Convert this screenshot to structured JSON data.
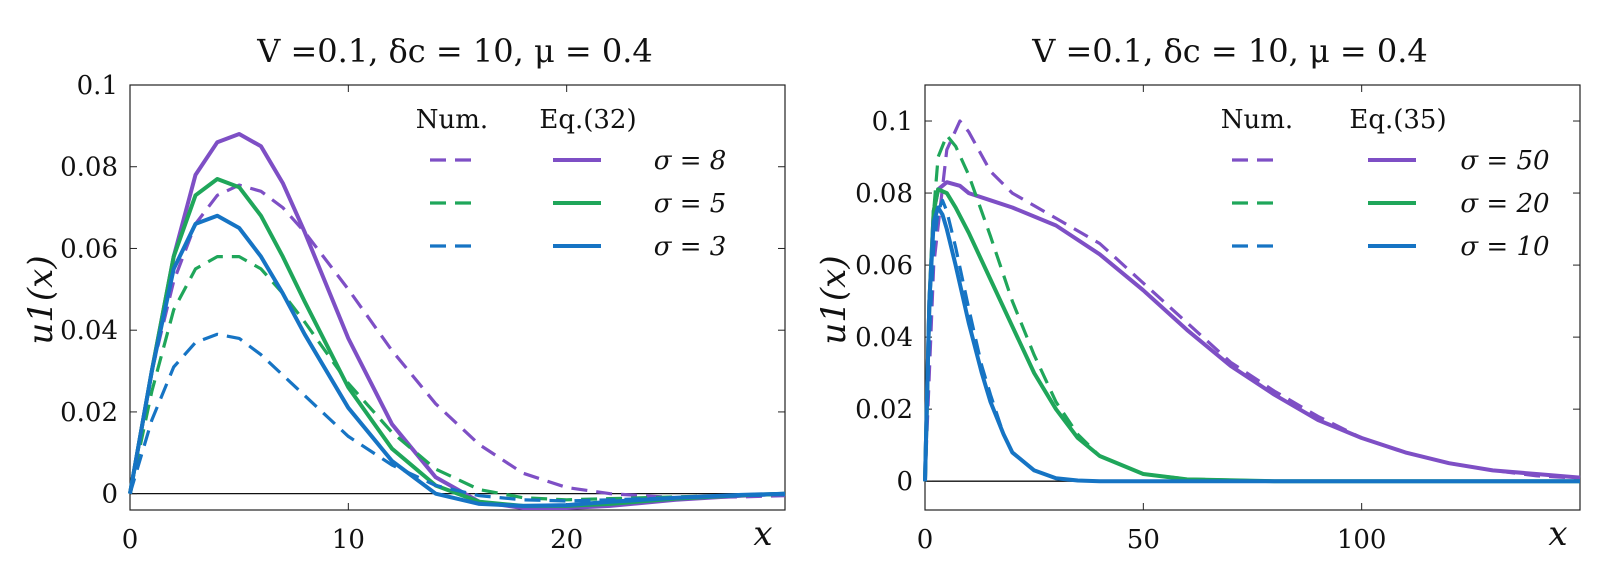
{
  "chart_data": [
    {
      "type": "line",
      "title": "V =0.1, δc = 10, μ = 0.4",
      "xlabel": "x",
      "ylabel": "u1(x)",
      "xlim": [
        0,
        30
      ],
      "ylim": [
        -0.004,
        0.1
      ],
      "xticks": [
        0,
        10,
        20
      ],
      "xtick_labels": [
        "0",
        "10",
        "20"
      ],
      "yticks": [
        0,
        0.02,
        0.04,
        0.06,
        0.08,
        0.1
      ],
      "ytick_labels": [
        "0",
        "0.02",
        "0.04",
        "0.06",
        "0.08",
        "0.1"
      ],
      "legend_headers": [
        "Num.",
        "Eq.(32)"
      ],
      "legend_position": "top-right",
      "series": [
        {
          "name": "σ = 8",
          "color": "#7e4fc5",
          "style": "dashed",
          "x": [
            0,
            1,
            2,
            3,
            4,
            5,
            6,
            7,
            8,
            10,
            12,
            14,
            16,
            18,
            20,
            22,
            25,
            28,
            30
          ],
          "y": [
            0,
            0.03,
            0.052,
            0.066,
            0.073,
            0.0755,
            0.074,
            0.07,
            0.064,
            0.05,
            0.035,
            0.022,
            0.012,
            0.005,
            0.0015,
            0,
            -0.001,
            -0.0008,
            -0.0005
          ]
        },
        {
          "name": "σ = 8",
          "color": "#7e4fc5",
          "style": "solid",
          "x": [
            0,
            1,
            2,
            3,
            4,
            5,
            6,
            7,
            8,
            10,
            12,
            14,
            16,
            18,
            20,
            22,
            25,
            28,
            30
          ],
          "y": [
            0,
            0.03,
            0.058,
            0.078,
            0.086,
            0.088,
            0.085,
            0.076,
            0.064,
            0.038,
            0.017,
            0.004,
            -0.002,
            -0.0035,
            -0.0035,
            -0.003,
            -0.0015,
            -0.0005,
            0
          ]
        },
        {
          "name": "σ = 5",
          "color": "#1fa65a",
          "style": "dashed",
          "x": [
            0,
            1,
            2,
            3,
            4,
            5,
            6,
            7,
            8,
            10,
            12,
            14,
            16,
            18,
            20,
            22,
            25,
            28,
            30
          ],
          "y": [
            0,
            0.025,
            0.045,
            0.055,
            0.058,
            0.058,
            0.055,
            0.049,
            0.042,
            0.027,
            0.015,
            0.006,
            0.001,
            -0.001,
            -0.0015,
            -0.0012,
            -0.0008,
            -0.0004,
            -0.0002
          ]
        },
        {
          "name": "σ = 5",
          "color": "#1fa65a",
          "style": "solid",
          "x": [
            0,
            1,
            2,
            3,
            4,
            5,
            6,
            7,
            8,
            10,
            12,
            14,
            16,
            18,
            20,
            22,
            25,
            28,
            30
          ],
          "y": [
            0,
            0.03,
            0.058,
            0.073,
            0.077,
            0.075,
            0.068,
            0.058,
            0.047,
            0.026,
            0.011,
            0.002,
            -0.002,
            -0.003,
            -0.003,
            -0.0025,
            -0.0012,
            -0.0004,
            0
          ]
        },
        {
          "name": "σ = 3",
          "color": "#1674c4",
          "style": "dashed",
          "x": [
            0,
            1,
            2,
            3,
            4,
            5,
            6,
            7,
            8,
            10,
            12,
            14,
            16,
            18,
            20,
            22,
            25,
            28,
            30
          ],
          "y": [
            0,
            0.018,
            0.031,
            0.037,
            0.039,
            0.038,
            0.034,
            0.029,
            0.024,
            0.014,
            0.007,
            0.002,
            -0.0005,
            -0.0015,
            -0.0018,
            -0.0015,
            -0.001,
            -0.0005,
            -0.0002
          ]
        },
        {
          "name": "σ = 3",
          "color": "#1674c4",
          "style": "solid",
          "x": [
            0,
            1,
            2,
            3,
            4,
            5,
            6,
            7,
            8,
            10,
            12,
            14,
            16,
            18,
            20,
            22,
            25,
            28,
            30
          ],
          "y": [
            0,
            0.03,
            0.055,
            0.066,
            0.068,
            0.065,
            0.058,
            0.049,
            0.039,
            0.021,
            0.008,
            0.0,
            -0.0025,
            -0.003,
            -0.0028,
            -0.002,
            -0.001,
            -0.0003,
            0
          ]
        }
      ]
    },
    {
      "type": "line",
      "title": "V =0.1, δc = 10, μ = 0.4",
      "xlabel": "x",
      "ylabel": "u1(x)",
      "xlim": [
        0,
        150
      ],
      "ylim": [
        -0.008,
        0.11
      ],
      "xticks": [
        0,
        50,
        100
      ],
      "xtick_labels": [
        "0",
        "50",
        "100"
      ],
      "yticks": [
        0,
        0.02,
        0.04,
        0.06,
        0.08,
        0.1
      ],
      "ytick_labels": [
        "0",
        "0.02",
        "0.04",
        "0.06",
        "0.08",
        "0.1"
      ],
      "legend_headers": [
        "Num.",
        "Eq.(35)"
      ],
      "legend_position": "top-right",
      "series": [
        {
          "name": "σ = 50",
          "color": "#7e4fc5",
          "style": "dashed",
          "x": [
            0,
            2,
            5,
            8,
            10,
            15,
            20,
            30,
            40,
            50,
            60,
            70,
            80,
            90,
            100,
            110,
            120,
            130,
            140,
            150
          ],
          "y": [
            0,
            0.06,
            0.092,
            0.1,
            0.097,
            0.086,
            0.08,
            0.073,
            0.066,
            0.055,
            0.044,
            0.033,
            0.025,
            0.018,
            0.012,
            0.008,
            0.005,
            0.003,
            0.0015,
            0.0008
          ]
        },
        {
          "name": "σ = 50",
          "color": "#7e4fc5",
          "style": "solid",
          "x": [
            0,
            1,
            2,
            3,
            5,
            8,
            10,
            15,
            20,
            30,
            40,
            50,
            60,
            70,
            80,
            90,
            100,
            110,
            120,
            130,
            140,
            150
          ],
          "y": [
            0,
            0.05,
            0.075,
            0.081,
            0.083,
            0.082,
            0.08,
            0.078,
            0.076,
            0.071,
            0.063,
            0.053,
            0.042,
            0.032,
            0.024,
            0.017,
            0.012,
            0.008,
            0.005,
            0.003,
            0.002,
            0.001
          ]
        },
        {
          "name": "σ = 20",
          "color": "#1fa65a",
          "style": "dashed",
          "x": [
            0,
            1,
            2,
            3,
            5,
            7,
            10,
            15,
            20,
            25,
            30,
            35,
            40,
            50,
            60,
            80,
            100,
            150
          ],
          "y": [
            0,
            0.045,
            0.075,
            0.09,
            0.096,
            0.093,
            0.085,
            0.068,
            0.05,
            0.035,
            0.022,
            0.013,
            0.007,
            0.002,
            0.0006,
            0,
            0,
            0
          ]
        },
        {
          "name": "σ = 20",
          "color": "#1fa65a",
          "style": "solid",
          "x": [
            0,
            1,
            2,
            3,
            5,
            7,
            10,
            15,
            20,
            25,
            30,
            35,
            40,
            50,
            60,
            80,
            100,
            150
          ],
          "y": [
            0,
            0.05,
            0.075,
            0.081,
            0.08,
            0.076,
            0.069,
            0.056,
            0.043,
            0.03,
            0.02,
            0.012,
            0.007,
            0.002,
            0.0005,
            0,
            0,
            0
          ]
        },
        {
          "name": "σ = 10",
          "color": "#1674c4",
          "style": "dashed",
          "x": [
            0,
            1,
            2,
            3,
            4,
            5,
            7,
            10,
            13,
            15,
            18,
            20,
            25,
            30,
            35,
            40,
            50,
            100,
            150
          ],
          "y": [
            0,
            0.04,
            0.065,
            0.075,
            0.078,
            0.075,
            0.065,
            0.048,
            0.032,
            0.024,
            0.013,
            0.008,
            0.003,
            0.0008,
            0.0002,
            0,
            0,
            0,
            0
          ]
        },
        {
          "name": "σ = 10",
          "color": "#1674c4",
          "style": "solid",
          "x": [
            0,
            1,
            2,
            3,
            4,
            5,
            7,
            10,
            13,
            15,
            18,
            20,
            25,
            30,
            35,
            40,
            50,
            100,
            150
          ],
          "y": [
            0,
            0.05,
            0.072,
            0.076,
            0.074,
            0.07,
            0.06,
            0.044,
            0.03,
            0.022,
            0.013,
            0.008,
            0.003,
            0.0008,
            0.0002,
            0,
            0,
            0,
            0
          ]
        }
      ]
    }
  ]
}
